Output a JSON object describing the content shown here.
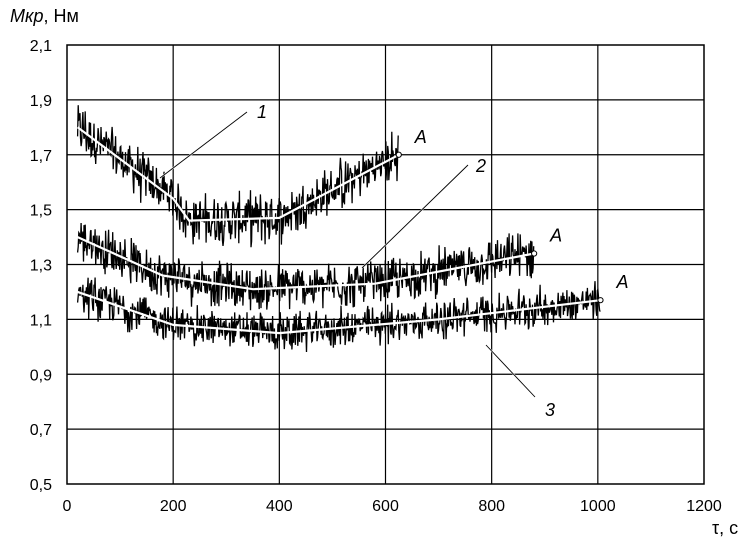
{
  "chart_data": {
    "type": "line",
    "ylabel_italic": "Мкр",
    "ylabel_unit": ", Нм",
    "xlabel": "τ, с",
    "xlim": [
      0,
      1200
    ],
    "ylim": [
      0.5,
      2.1
    ],
    "x_ticks": [
      "0",
      "200",
      "400",
      "600",
      "800",
      "1000",
      "1200"
    ],
    "y_ticks": [
      "0,5",
      "0,7",
      "0,9",
      "1,1",
      "1,3",
      "1,5",
      "1,7",
      "1,9",
      "2,1"
    ],
    "x_tick_values": [
      0,
      200,
      400,
      600,
      800,
      1000,
      1200
    ],
    "y_tick_values": [
      0.5,
      0.7,
      0.9,
      1.1,
      1.3,
      1.5,
      1.7,
      1.9,
      2.1
    ],
    "grid": true,
    "series": [
      {
        "name": "1",
        "end_label": "A",
        "trend_x": [
          20,
          200,
          230,
          400,
          625
        ],
        "trend_y": [
          1.8,
          1.54,
          1.46,
          1.47,
          1.7
        ],
        "noise_amplitude": 0.09
      },
      {
        "name": "2",
        "end_label": "A",
        "trend_x": [
          20,
          180,
          350,
          580,
          880
        ],
        "trend_y": [
          1.4,
          1.26,
          1.21,
          1.23,
          1.34
        ],
        "noise_amplitude": 0.08
      },
      {
        "name": "3",
        "end_label": "A",
        "trend_x": [
          20,
          200,
          400,
          700,
          1005
        ],
        "trend_y": [
          1.2,
          1.08,
          1.05,
          1.1,
          1.17
        ],
        "noise_amplitude": 0.07
      }
    ],
    "colors": {
      "noise": "#000000",
      "trend": "#ffffff",
      "grid": "#000000"
    }
  }
}
